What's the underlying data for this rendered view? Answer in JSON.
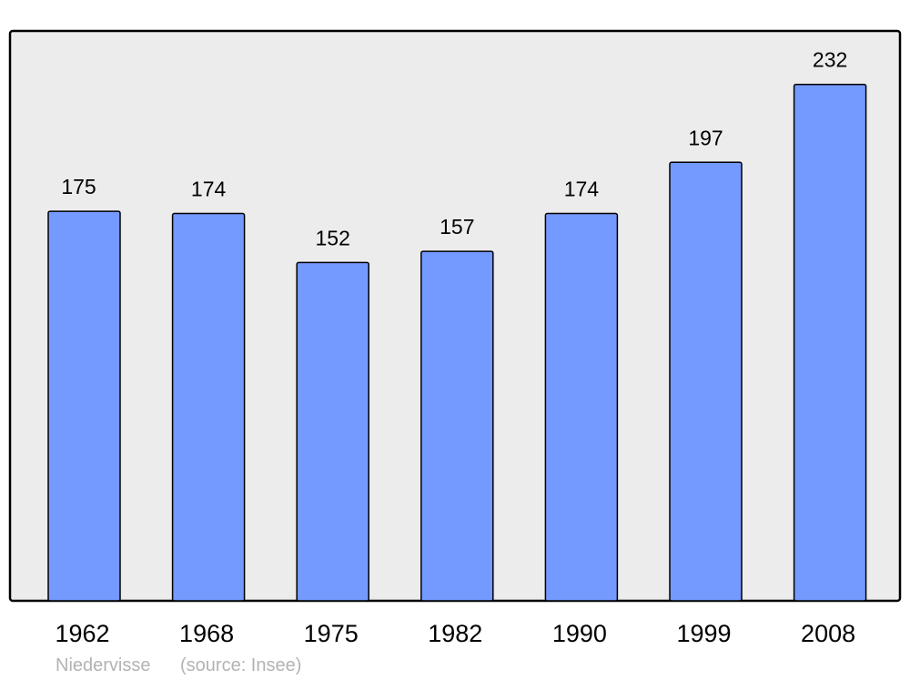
{
  "chart_data": {
    "type": "bar",
    "categories": [
      "1962",
      "1968",
      "1975",
      "1982",
      "1990",
      "1999",
      "2008"
    ],
    "values": [
      175,
      174,
      152,
      157,
      174,
      197,
      232
    ],
    "data_labels": [
      "175",
      "174",
      "152",
      "157",
      "174",
      "197",
      "232"
    ],
    "title": "",
    "xlabel": "",
    "ylabel": "",
    "ylim": [
      0,
      256
    ],
    "grid": false,
    "colors": {
      "bar": "#7499ff",
      "plot_background": "#ececec",
      "border": "#000000",
      "footer_text": "#b3b3b3"
    }
  },
  "footer": {
    "place": "Niedervisse",
    "source": "(source: Insee)"
  }
}
